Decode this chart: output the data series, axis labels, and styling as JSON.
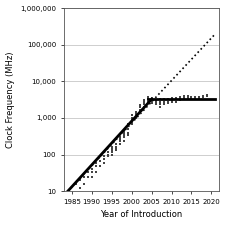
{
  "title": "",
  "xlabel": "Year of Introduction",
  "ylabel": "Clock Frequency (MHz)",
  "xlim": [
    1983,
    2022
  ],
  "ylim_log": [
    10,
    1000000
  ],
  "xticks": [
    1985,
    1990,
    1995,
    2000,
    2005,
    2010,
    2015,
    2020
  ],
  "yticks": [
    10,
    100,
    1000,
    10000,
    100000,
    1000000
  ],
  "ytick_labels": [
    "10",
    "100",
    "1,000",
    "10,000",
    "100,000",
    "1,000,000"
  ],
  "scatter_data": [
    [
      1985,
      8
    ],
    [
      1986,
      8
    ],
    [
      1986,
      16
    ],
    [
      1987,
      12
    ],
    [
      1987,
      20
    ],
    [
      1988,
      16
    ],
    [
      1988,
      25
    ],
    [
      1989,
      25
    ],
    [
      1989,
      33
    ],
    [
      1990,
      25
    ],
    [
      1990,
      33
    ],
    [
      1990,
      40
    ],
    [
      1991,
      33
    ],
    [
      1991,
      50
    ],
    [
      1991,
      60
    ],
    [
      1992,
      50
    ],
    [
      1992,
      66
    ],
    [
      1993,
      60
    ],
    [
      1993,
      75
    ],
    [
      1993,
      90
    ],
    [
      1994,
      90
    ],
    [
      1994,
      100
    ],
    [
      1994,
      120
    ],
    [
      1995,
      100
    ],
    [
      1995,
      120
    ],
    [
      1995,
      133
    ],
    [
      1995,
      150
    ],
    [
      1995,
      166
    ],
    [
      1996,
      133
    ],
    [
      1996,
      150
    ],
    [
      1996,
      166
    ],
    [
      1996,
      200
    ],
    [
      1997,
      200
    ],
    [
      1997,
      233
    ],
    [
      1997,
      266
    ],
    [
      1997,
      300
    ],
    [
      1998,
      233
    ],
    [
      1998,
      300
    ],
    [
      1998,
      350
    ],
    [
      1998,
      400
    ],
    [
      1998,
      450
    ],
    [
      1999,
      350
    ],
    [
      1999,
      400
    ],
    [
      1999,
      500
    ],
    [
      1999,
      600
    ],
    [
      1999,
      700
    ],
    [
      2000,
      700
    ],
    [
      2000,
      800
    ],
    [
      2000,
      900
    ],
    [
      2000,
      1000
    ],
    [
      2000,
      1200
    ],
    [
      2001,
      1000
    ],
    [
      2001,
      1200
    ],
    [
      2001,
      1400
    ],
    [
      2001,
      1500
    ],
    [
      2002,
      1400
    ],
    [
      2002,
      1700
    ],
    [
      2002,
      2000
    ],
    [
      2002,
      2200
    ],
    [
      2003,
      2000
    ],
    [
      2003,
      2400
    ],
    [
      2003,
      2800
    ],
    [
      2003,
      3000
    ],
    [
      2004,
      2800
    ],
    [
      2004,
      3200
    ],
    [
      2004,
      3600
    ],
    [
      2004,
      3800
    ],
    [
      2005,
      2500
    ],
    [
      2005,
      2800
    ],
    [
      2005,
      3000
    ],
    [
      2005,
      3600
    ],
    [
      2006,
      2400
    ],
    [
      2006,
      2800
    ],
    [
      2006,
      3000
    ],
    [
      2007,
      2000
    ],
    [
      2007,
      2400
    ],
    [
      2007,
      2800
    ],
    [
      2007,
      3200
    ],
    [
      2008,
      2400
    ],
    [
      2008,
      2800
    ],
    [
      2008,
      3200
    ],
    [
      2009,
      2600
    ],
    [
      2009,
      2800
    ],
    [
      2009,
      3200
    ],
    [
      2010,
      2800
    ],
    [
      2010,
      3000
    ],
    [
      2010,
      3400
    ],
    [
      2011,
      2800
    ],
    [
      2011,
      3200
    ],
    [
      2011,
      3600
    ],
    [
      2012,
      3100
    ],
    [
      2012,
      3400
    ],
    [
      2012,
      3800
    ],
    [
      2013,
      3400
    ],
    [
      2013,
      3600
    ],
    [
      2013,
      3900
    ],
    [
      2014,
      3500
    ],
    [
      2014,
      3700
    ],
    [
      2014,
      4000
    ],
    [
      2015,
      3600
    ],
    [
      2015,
      3800
    ],
    [
      2016,
      3500
    ],
    [
      2016,
      3800
    ],
    [
      2017,
      3600
    ],
    [
      2017,
      3800
    ],
    [
      2018,
      3800
    ],
    [
      2018,
      4000
    ],
    [
      2019,
      3900
    ],
    [
      2019,
      4200
    ]
  ],
  "dotted_line_x1": 1984,
  "dotted_line_x2": 2021,
  "dotted_line_log_y1": 1.0,
  "dotted_line_log_y2": 5.3,
  "exp_line_x1": 1984,
  "exp_line_x2": 2005,
  "exp_line_log_y1": 1.0,
  "exp_line_log_y2": 3.51,
  "flat_line_x1": 2004,
  "flat_line_x2": 2021,
  "flat_line_y": 3200,
  "scatter_marker": "s",
  "scatter_color": "#444444",
  "scatter_size": 3,
  "background_color": "#ffffff",
  "grid_color": "#bbbbbb",
  "tick_label_fontsize": 5.0,
  "axis_label_fontsize": 6.0
}
